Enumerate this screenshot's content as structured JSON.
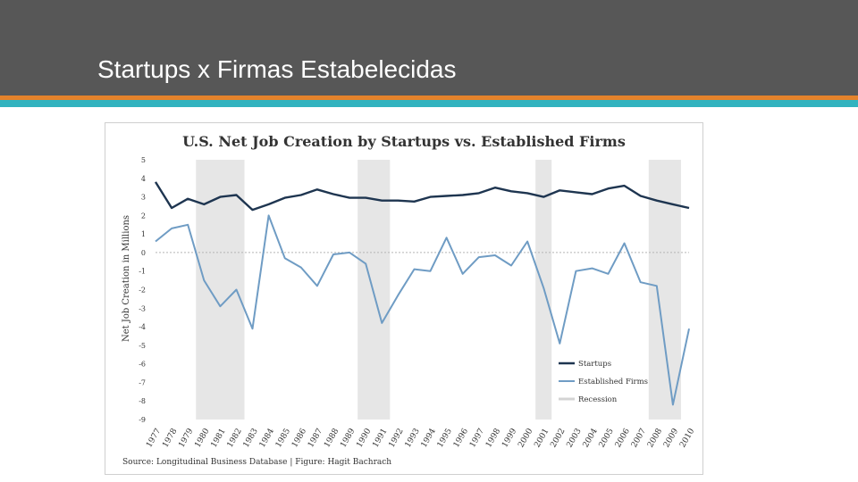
{
  "slide": {
    "title": "Startups x Firmas Estabelecidas"
  },
  "colors": {
    "header": "#575757",
    "orange": "#e4822b",
    "teal": "#32b3bf",
    "startups": "#1e3550",
    "established": "#6f9cc4",
    "recession": "#e6e6e6"
  },
  "chart_data": {
    "type": "line",
    "title": "U.S. Net Job Creation by Startups vs. Established Firms",
    "ylabel": "Net Job Creation in Millions",
    "xlabel": "",
    "ylim": [
      -9,
      5
    ],
    "yticks": [
      "5",
      "4",
      "3",
      "2",
      "1",
      "0",
      "-1",
      "-2",
      "-3",
      "-4",
      "-5",
      "-6",
      "-7",
      "-8",
      "-9"
    ],
    "x": [
      "1977",
      "1978",
      "1979",
      "1980",
      "1981",
      "1982",
      "1983",
      "1984",
      "1985",
      "1986",
      "1987",
      "1988",
      "1989",
      "1990",
      "1991",
      "1992",
      "1993",
      "1994",
      "1995",
      "1996",
      "1997",
      "1998",
      "1999",
      "2000",
      "2001",
      "2002",
      "2003",
      "2004",
      "2005",
      "2006",
      "2007",
      "2008",
      "2009",
      "2010"
    ],
    "series": [
      {
        "name": "Startups",
        "values": [
          3.8,
          2.4,
          2.9,
          2.6,
          3.0,
          3.1,
          2.3,
          2.6,
          2.95,
          3.1,
          3.4,
          3.15,
          2.95,
          2.95,
          2.8,
          2.8,
          2.75,
          3.0,
          3.05,
          3.1,
          3.2,
          3.5,
          3.3,
          3.2,
          3.0,
          3.35,
          3.25,
          3.15,
          3.45,
          3.6,
          3.05,
          2.8,
          2.6,
          2.4
        ]
      },
      {
        "name": "Established Firms",
        "values": [
          0.6,
          1.3,
          1.5,
          -1.5,
          -2.9,
          -2.0,
          -4.1,
          2.0,
          -0.3,
          -0.8,
          -1.8,
          -0.1,
          0.0,
          -0.6,
          -3.8,
          -2.3,
          -0.9,
          -1.0,
          0.8,
          -1.15,
          -0.25,
          -0.15,
          -0.7,
          0.6,
          -1.9,
          -4.9,
          -1.0,
          -0.85,
          -1.15,
          0.5,
          -1.6,
          -1.8,
          -8.2,
          -4.1
        ]
      }
    ],
    "recession_label": "Recession",
    "recessions": [
      [
        "1980",
        "1982"
      ],
      [
        "1990",
        "1991"
      ],
      [
        "2001",
        "2001"
      ],
      [
        "2008",
        "2009"
      ]
    ],
    "legend": "bottom-right",
    "grid": false,
    "source": "Source: Longitudinal Business Database | Figure: Hagit Bachrach"
  }
}
